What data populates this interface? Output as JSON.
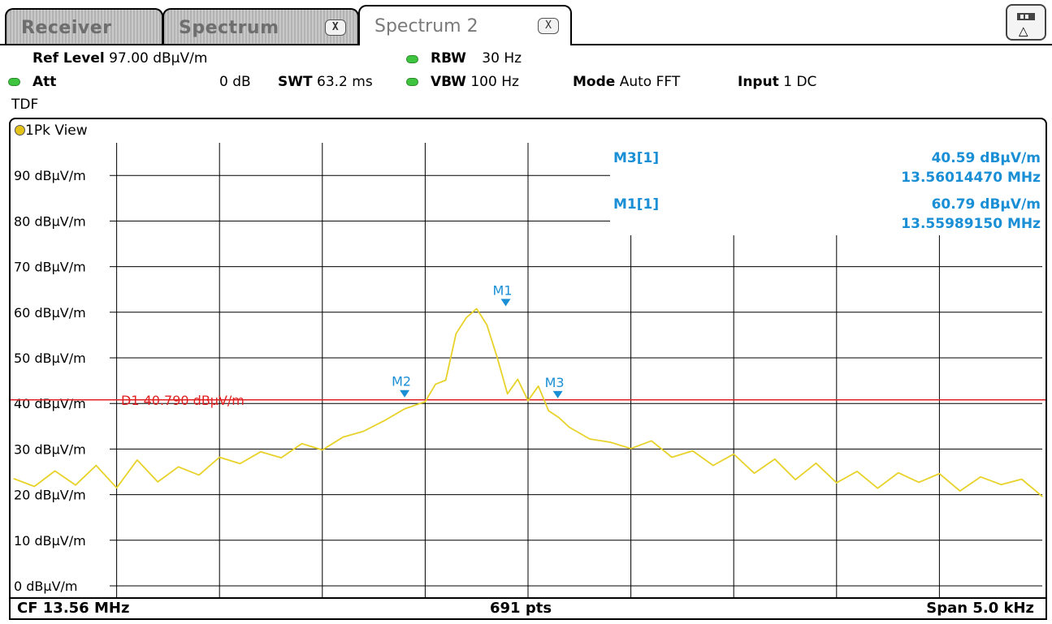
{
  "tabs": [
    {
      "label": "Receiver",
      "closable": false,
      "active": false
    },
    {
      "label": "Spectrum",
      "closable": true,
      "active": false
    },
    {
      "label": "Spectrum 2",
      "closable": true,
      "active": true
    }
  ],
  "tab_close_glyph": "X",
  "tool_button_icon": "marker-delta-icon",
  "settings": {
    "ref_level_label": "Ref Level",
    "ref_level_value": "97.00 dBµV/m",
    "att_label": "Att",
    "att_value": "0 dB",
    "swt_label": "SWT",
    "swt_value": "63.2 ms",
    "rbw_label": "RBW",
    "rbw_value": "30 Hz",
    "vbw_label": "VBW",
    "vbw_value": "100 Hz",
    "mode_label": "Mode",
    "mode_value": "Auto FFT",
    "input_label": "Input",
    "input_value": "1 DC",
    "tdf_label": "TDF"
  },
  "view_label": "1Pk View",
  "footer": {
    "cf": "CF 13.56 MHz",
    "pts": "691 pts",
    "span": "Span 5.0 kHz"
  },
  "colors": {
    "trace": "#e8d22a",
    "display_line": "#e02020",
    "marker": "#1a8fd6",
    "grid": "#000000",
    "status_led": "#3ec43e"
  },
  "chart_data": {
    "type": "line",
    "ylim": [
      0,
      100
    ],
    "xlim": [
      13.5575,
      13.5625
    ],
    "x_unit": "MHz",
    "y_unit": "dBµV/m",
    "y_ticks": [
      {
        "value": 90,
        "label": "90 dBµV/m"
      },
      {
        "value": 80,
        "label": "80 dBµV/m"
      },
      {
        "value": 70,
        "label": "70 dBµV/m"
      },
      {
        "value": 60,
        "label": "60 dBµV/m"
      },
      {
        "value": 50,
        "label": "50 dBµV/m"
      },
      {
        "value": 40,
        "label": "40 dBµV/m"
      },
      {
        "value": 30,
        "label": "30 dBµV/m"
      },
      {
        "value": 20,
        "label": "20 dBµV/m"
      },
      {
        "value": 10,
        "label": "10 dBµV/m"
      },
      {
        "value": 0,
        "label": "0 dBµV/m"
      }
    ],
    "x_divisions": 10,
    "grid": true,
    "display_line": {
      "label": "D1  40.790 dBµV/m",
      "value": 40.79
    },
    "markers": [
      {
        "name": "M1",
        "x": 13.5598915,
        "y": 60.79
      },
      {
        "name": "M2",
        "x": 13.5594,
        "y": 40.8
      },
      {
        "name": "M3",
        "x": 13.5601447,
        "y": 40.59
      }
    ],
    "marker_table": [
      {
        "name": "M3[1]",
        "level": "40.59 dBµV/m",
        "freq": "13.56014470 MHz"
      },
      {
        "name": "M1[1]",
        "level": "60.79 dBµV/m",
        "freq": "13.55989150 MHz"
      }
    ],
    "series": [
      {
        "x": [
          13.5575,
          13.5576,
          13.5577,
          13.5578,
          13.5579,
          13.558,
          13.5581,
          13.5582,
          13.5583,
          13.5584,
          13.5585,
          13.5586,
          13.5587,
          13.5588,
          13.5589,
          13.559,
          13.5591,
          13.5592,
          13.5593,
          13.5594,
          13.5595,
          13.55955,
          13.5596,
          13.55965,
          13.5597,
          13.55975,
          13.5598,
          13.55985,
          13.5599,
          13.55995,
          13.56,
          13.56005,
          13.5601,
          13.56015,
          13.5602,
          13.5603,
          13.5604,
          13.5605,
          13.5606,
          13.5607,
          13.5608,
          13.5609,
          13.561,
          13.5611,
          13.5612,
          13.5613,
          13.5614,
          13.5615,
          13.5616,
          13.5617,
          13.5618,
          13.5619,
          13.562,
          13.5621,
          13.5622,
          13.5623,
          13.5624,
          13.5625
        ],
        "y": [
          23.5,
          21.8,
          25.2,
          22.1,
          26.4,
          21.5,
          27.6,
          22.8,
          26.1,
          24.3,
          28.2,
          26.8,
          29.4,
          28.1,
          31.2,
          29.8,
          32.6,
          33.9,
          36.2,
          38.8,
          40.4,
          44.2,
          45.1,
          55.3,
          58.8,
          60.79,
          57.2,
          50.1,
          42.1,
          45.3,
          40.6,
          43.8,
          38.4,
          36.9,
          34.8,
          32.2,
          31.5,
          30.1,
          31.8,
          28.2,
          29.6,
          26.4,
          28.9,
          24.7,
          27.8,
          23.3,
          26.9,
          22.6,
          25.1,
          21.4,
          24.8,
          22.7,
          24.6,
          20.8,
          23.9,
          22.2,
          23.4,
          19.6
        ]
      }
    ]
  }
}
